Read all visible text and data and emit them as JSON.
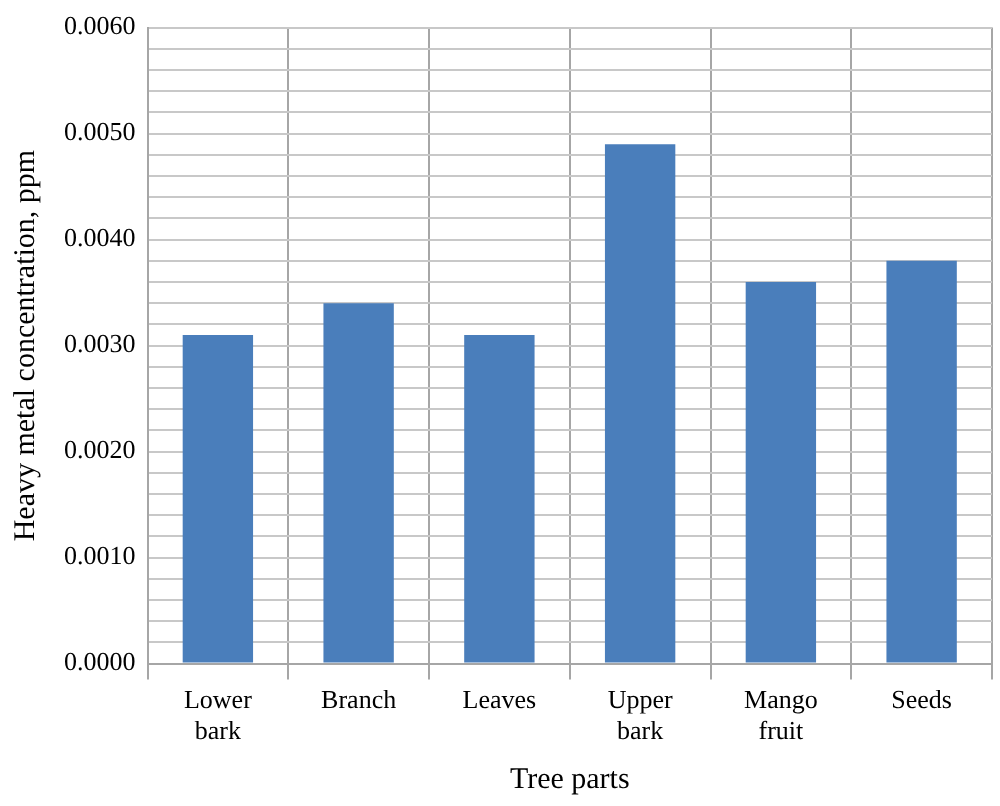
{
  "chart_data": {
    "type": "bar",
    "xlabel": "Tree parts",
    "ylabel": "Heavy metal concentration, ppm",
    "categories": [
      "Lower bark",
      "Branch",
      "Leaves",
      "Upper bark",
      "Mango fruit",
      "Seeds"
    ],
    "values": [
      0.0031,
      0.0034,
      0.0031,
      0.0049,
      0.0036,
      0.0038
    ],
    "color": "#4a7ebb",
    "ylim": [
      0,
      0.006
    ],
    "yticks": [
      {
        "value": 0,
        "label": "0.0000"
      },
      {
        "value": 0.0002,
        "label": null
      },
      {
        "value": 0.0004,
        "label": null
      },
      {
        "value": 0.0006,
        "label": null
      },
      {
        "value": 0.0008,
        "label": null
      },
      {
        "value": 0.001,
        "label": "0.0010"
      },
      {
        "value": 0.0012,
        "label": null
      },
      {
        "value": 0.0014,
        "label": null
      },
      {
        "value": 0.0016,
        "label": null
      },
      {
        "value": 0.0018,
        "label": null
      },
      {
        "value": 0.002,
        "label": "0.0020"
      },
      {
        "value": 0.0022,
        "label": null
      },
      {
        "value": 0.0024,
        "label": null
      },
      {
        "value": 0.0026,
        "label": null
      },
      {
        "value": 0.0028,
        "label": null
      },
      {
        "value": 0.003,
        "label": "0.0030"
      },
      {
        "value": 0.0032,
        "label": null
      },
      {
        "value": 0.0034,
        "label": null
      },
      {
        "value": 0.0036,
        "label": null
      },
      {
        "value": 0.0038,
        "label": null
      },
      {
        "value": 0.004,
        "label": "0.0040"
      },
      {
        "value": 0.0042,
        "label": null
      },
      {
        "value": 0.0044,
        "label": null
      },
      {
        "value": 0.0046,
        "label": null
      },
      {
        "value": 0.0048,
        "label": null
      },
      {
        "value": 0.005,
        "label": "0.0050"
      },
      {
        "value": 0.0052,
        "label": null
      },
      {
        "value": 0.0054,
        "label": null
      },
      {
        "value": 0.0056,
        "label": null
      },
      {
        "value": 0.0058,
        "label": null
      },
      {
        "value": 0.006,
        "label": "0.0060"
      }
    ],
    "grid": true,
    "legend": false
  }
}
